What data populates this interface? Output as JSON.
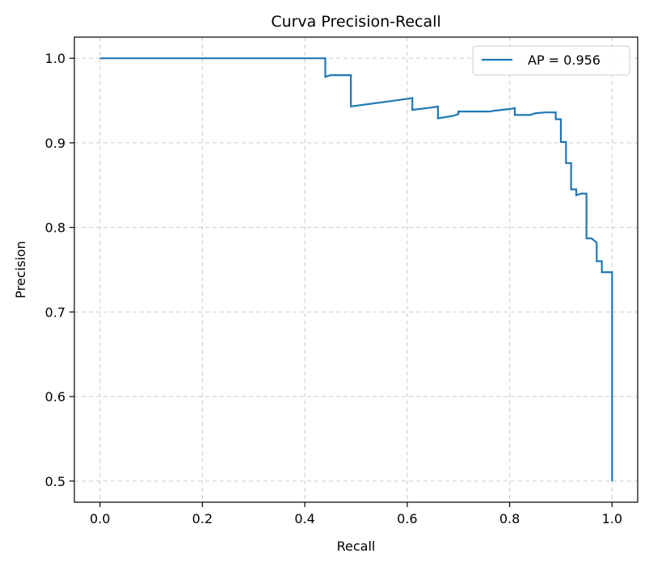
{
  "chart_data": {
    "type": "line",
    "title": "Curva Precision-Recall",
    "xlabel": "Recall",
    "ylabel": "Precision",
    "xlim": [
      -0.05,
      1.05
    ],
    "ylim": [
      0.475,
      1.025
    ],
    "xticks": [
      0.0,
      0.2,
      0.4,
      0.6,
      0.8,
      1.0
    ],
    "xtick_labels": [
      "0.0",
      "0.2",
      "0.4",
      "0.6",
      "0.8",
      "1.0"
    ],
    "yticks": [
      0.5,
      0.6,
      0.7,
      0.8,
      0.9,
      1.0
    ],
    "ytick_labels": [
      "0.5",
      "0.6",
      "0.7",
      "0.8",
      "0.9",
      "1.0"
    ],
    "grid": true,
    "legend_position": "top-right",
    "series": [
      {
        "name": "AP = 0.956",
        "color": "#1f77b4",
        "step": true,
        "x": [
          0.0,
          0.44,
          0.44,
          0.45,
          0.49,
          0.49,
          0.6,
          0.61,
          0.61,
          0.65,
          0.66,
          0.66,
          0.69,
          0.7,
          0.7,
          0.76,
          0.77,
          0.8,
          0.81,
          0.81,
          0.84,
          0.85,
          0.87,
          0.89,
          0.89,
          0.9,
          0.9,
          0.91,
          0.91,
          0.92,
          0.92,
          0.93,
          0.93,
          0.94,
          0.95,
          0.95,
          0.96,
          0.97,
          0.97,
          0.98,
          0.98,
          1.0,
          1.0
        ],
        "y": [
          1.0,
          1.0,
          0.978,
          0.98,
          0.98,
          0.943,
          0.952,
          0.953,
          0.939,
          0.942,
          0.943,
          0.929,
          0.932,
          0.934,
          0.937,
          0.937,
          0.938,
          0.94,
          0.941,
          0.933,
          0.933,
          0.935,
          0.936,
          0.936,
          0.928,
          0.928,
          0.901,
          0.901,
          0.876,
          0.876,
          0.845,
          0.845,
          0.838,
          0.84,
          0.84,
          0.787,
          0.787,
          0.782,
          0.76,
          0.76,
          0.747,
          0.747,
          0.5
        ]
      }
    ]
  }
}
